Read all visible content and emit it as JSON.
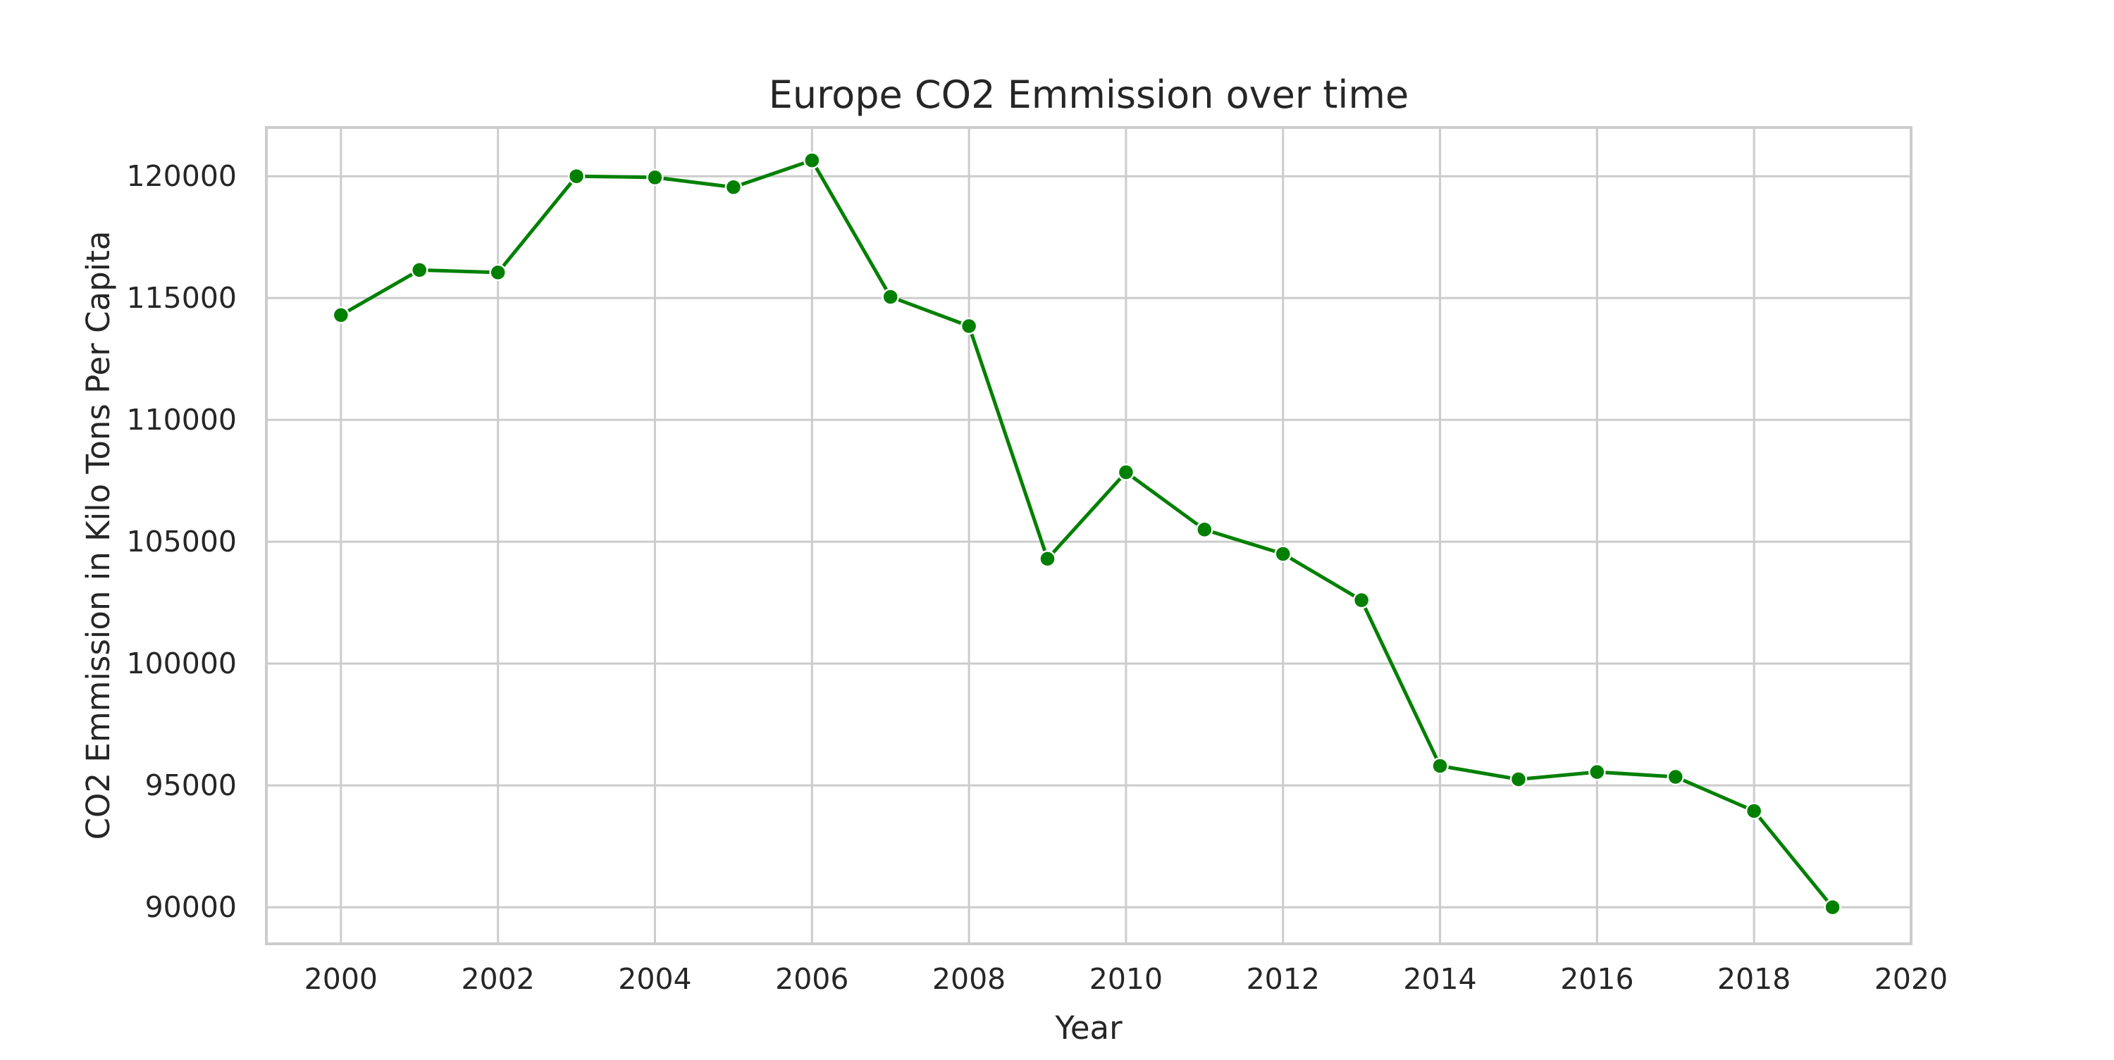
{
  "chart_data": {
    "type": "line",
    "title": "Europe CO2 Emmission over time",
    "xlabel": "Year",
    "ylabel": "CO2 Emmission in Kilo Tons Per Capita",
    "xlim": [
      1999.05,
      2020.0
    ],
    "ylim": [
      88500,
      122000
    ],
    "x_ticks": [
      2000,
      2002,
      2004,
      2006,
      2008,
      2010,
      2012,
      2014,
      2016,
      2018,
      2020
    ],
    "y_ticks": [
      90000,
      95000,
      100000,
      105000,
      110000,
      115000,
      120000
    ],
    "grid": true,
    "marker": "circle",
    "series": [
      {
        "color": "#008000",
        "x": [
          2000,
          2001,
          2002,
          2003,
          2004,
          2005,
          2006,
          2007,
          2008,
          2009,
          2010,
          2011,
          2012,
          2013,
          2014,
          2015,
          2016,
          2017,
          2018,
          2019
        ],
        "y": [
          114300,
          116150,
          116050,
          120000,
          119950,
          119550,
          120650,
          115050,
          113850,
          104300,
          107850,
          105500,
          104500,
          102600,
          95800,
          95250,
          95550,
          95350,
          93950,
          90000
        ]
      }
    ]
  }
}
